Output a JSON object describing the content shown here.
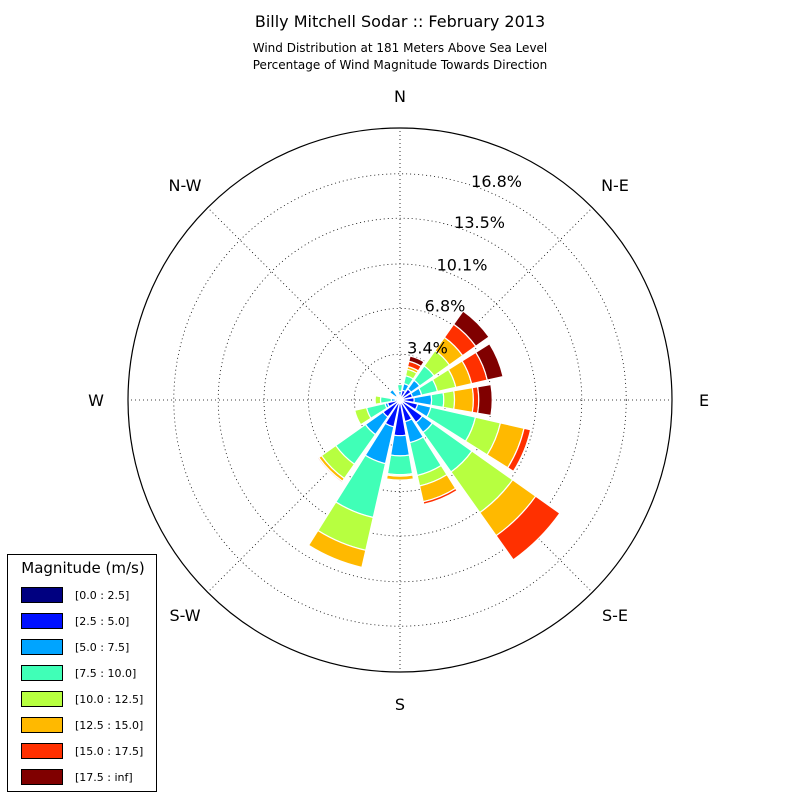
{
  "header": {
    "title": "Billy Mitchell Sodar :: February 2013",
    "subtitle_line1": "Wind Distribution at 181 Meters Above Sea Level",
    "subtitle_line2": "Percentage of Wind Magnitude Towards Direction"
  },
  "chart_data": {
    "type": "windrose",
    "title": "Billy Mitchell Sodar :: February 2013",
    "subtitle": [
      "Wind Distribution at 181 Meters Above Sea Level",
      "Percentage of Wind Magnitude Towards Direction"
    ],
    "radial_unit": "%",
    "rmax": 20.2,
    "radial_ticks": [
      3.4,
      6.8,
      10.1,
      13.5,
      16.8
    ],
    "radial_tick_labels": [
      "3.4%",
      "6.8%",
      "10.1%",
      "13.5%",
      "16.8%"
    ],
    "compass_labels": [
      {
        "text": "N",
        "deg": 0
      },
      {
        "text": "N-E",
        "deg": 45
      },
      {
        "text": "E",
        "deg": 90
      },
      {
        "text": "S-E",
        "deg": 135
      },
      {
        "text": "S",
        "deg": 180
      },
      {
        "text": "S-W",
        "deg": 225
      },
      {
        "text": "W",
        "deg": 270
      },
      {
        "text": "N-W",
        "deg": 315
      }
    ],
    "grid": true,
    "direction_bin_width_deg": 22.5,
    "legend": {
      "title": "Magnitude (m/s)",
      "position": "lower-left",
      "items": [
        {
          "label": "[0.0 : 2.5]",
          "color": "#000080"
        },
        {
          "label": "[2.5 : 5.0]",
          "color": "#0010ff"
        },
        {
          "label": "[5.0 : 7.5]",
          "color": "#00a4ff"
        },
        {
          "label": "[7.5 : 10.0]",
          "color": "#40ffb7"
        },
        {
          "label": "[10.0 : 12.5]",
          "color": "#b7ff40"
        },
        {
          "label": "[12.5 : 15.0]",
          "color": "#ffb900"
        },
        {
          "label": "[15.0 : 17.5]",
          "color": "#ff3000"
        },
        {
          "label": "[17.5 : inf]",
          "color": "#800000"
        }
      ]
    },
    "series": [
      {
        "direction_deg": 0,
        "values": [
          0.05,
          0.3,
          0.3,
          0.5,
          0.0,
          0.0,
          0.0,
          0.0
        ]
      },
      {
        "direction_deg": 22.5,
        "values": [
          0.05,
          0.7,
          0.5,
          0.6,
          0.5,
          0.2,
          0.4,
          0.4
        ]
      },
      {
        "direction_deg": 45,
        "values": [
          0.05,
          0.95,
          0.8,
          1.3,
          1.4,
          1.2,
          1.2,
          1.2
        ]
      },
      {
        "direction_deg": 67.5,
        "values": [
          0.05,
          0.9,
          0.7,
          1.2,
          1.4,
          1.2,
          1.2,
          1.2
        ]
      },
      {
        "direction_deg": 90,
        "values": [
          0.05,
          1.0,
          1.3,
          0.9,
          0.8,
          1.4,
          0.4,
          1.0
        ]
      },
      {
        "direction_deg": 112.5,
        "values": [
          0.05,
          1.3,
          1.0,
          3.4,
          1.9,
          1.8,
          0.5,
          0.0
        ]
      },
      {
        "direction_deg": 135,
        "values": [
          0.05,
          2.0,
          0.9,
          3.6,
          3.7,
          2.1,
          2.2,
          0.0
        ]
      },
      {
        "direction_deg": 157.5,
        "values": [
          0.05,
          1.6,
          1.6,
          2.5,
          0.8,
          1.2,
          0.2,
          0.0
        ]
      },
      {
        "direction_deg": 180,
        "values": [
          0.05,
          2.6,
          1.5,
          1.4,
          0.1,
          0.3,
          0.0,
          0.0
        ]
      },
      {
        "direction_deg": 202.5,
        "values": [
          0.05,
          2.0,
          2.8,
          4.1,
          2.5,
          1.3,
          0.0,
          0.0
        ]
      },
      {
        "direction_deg": 225,
        "values": [
          0.05,
          1.5,
          1.6,
          2.7,
          1.3,
          0.25,
          0.1,
          0.0
        ]
      },
      {
        "direction_deg": 247.5,
        "values": [
          0.05,
          0.9,
          0.2,
          1.4,
          0.9,
          0.0,
          0.0,
          0.0
        ]
      },
      {
        "direction_deg": 270,
        "values": [
          0.05,
          0.3,
          0.3,
          0.8,
          0.4,
          0.0,
          0.0,
          0.0
        ]
      },
      {
        "direction_deg": 292.5,
        "values": [
          0.05,
          0.1,
          0.0,
          0.0,
          0.0,
          0.0,
          0.0,
          0.0
        ]
      },
      {
        "direction_deg": 315,
        "values": [
          0.05,
          0.3,
          0.6,
          0.0,
          0.0,
          0.0,
          0.0,
          0.0
        ]
      },
      {
        "direction_deg": 337.5,
        "values": [
          0.05,
          0.1,
          0.0,
          0.0,
          0.0,
          0.0,
          0.0,
          0.0
        ]
      }
    ]
  }
}
